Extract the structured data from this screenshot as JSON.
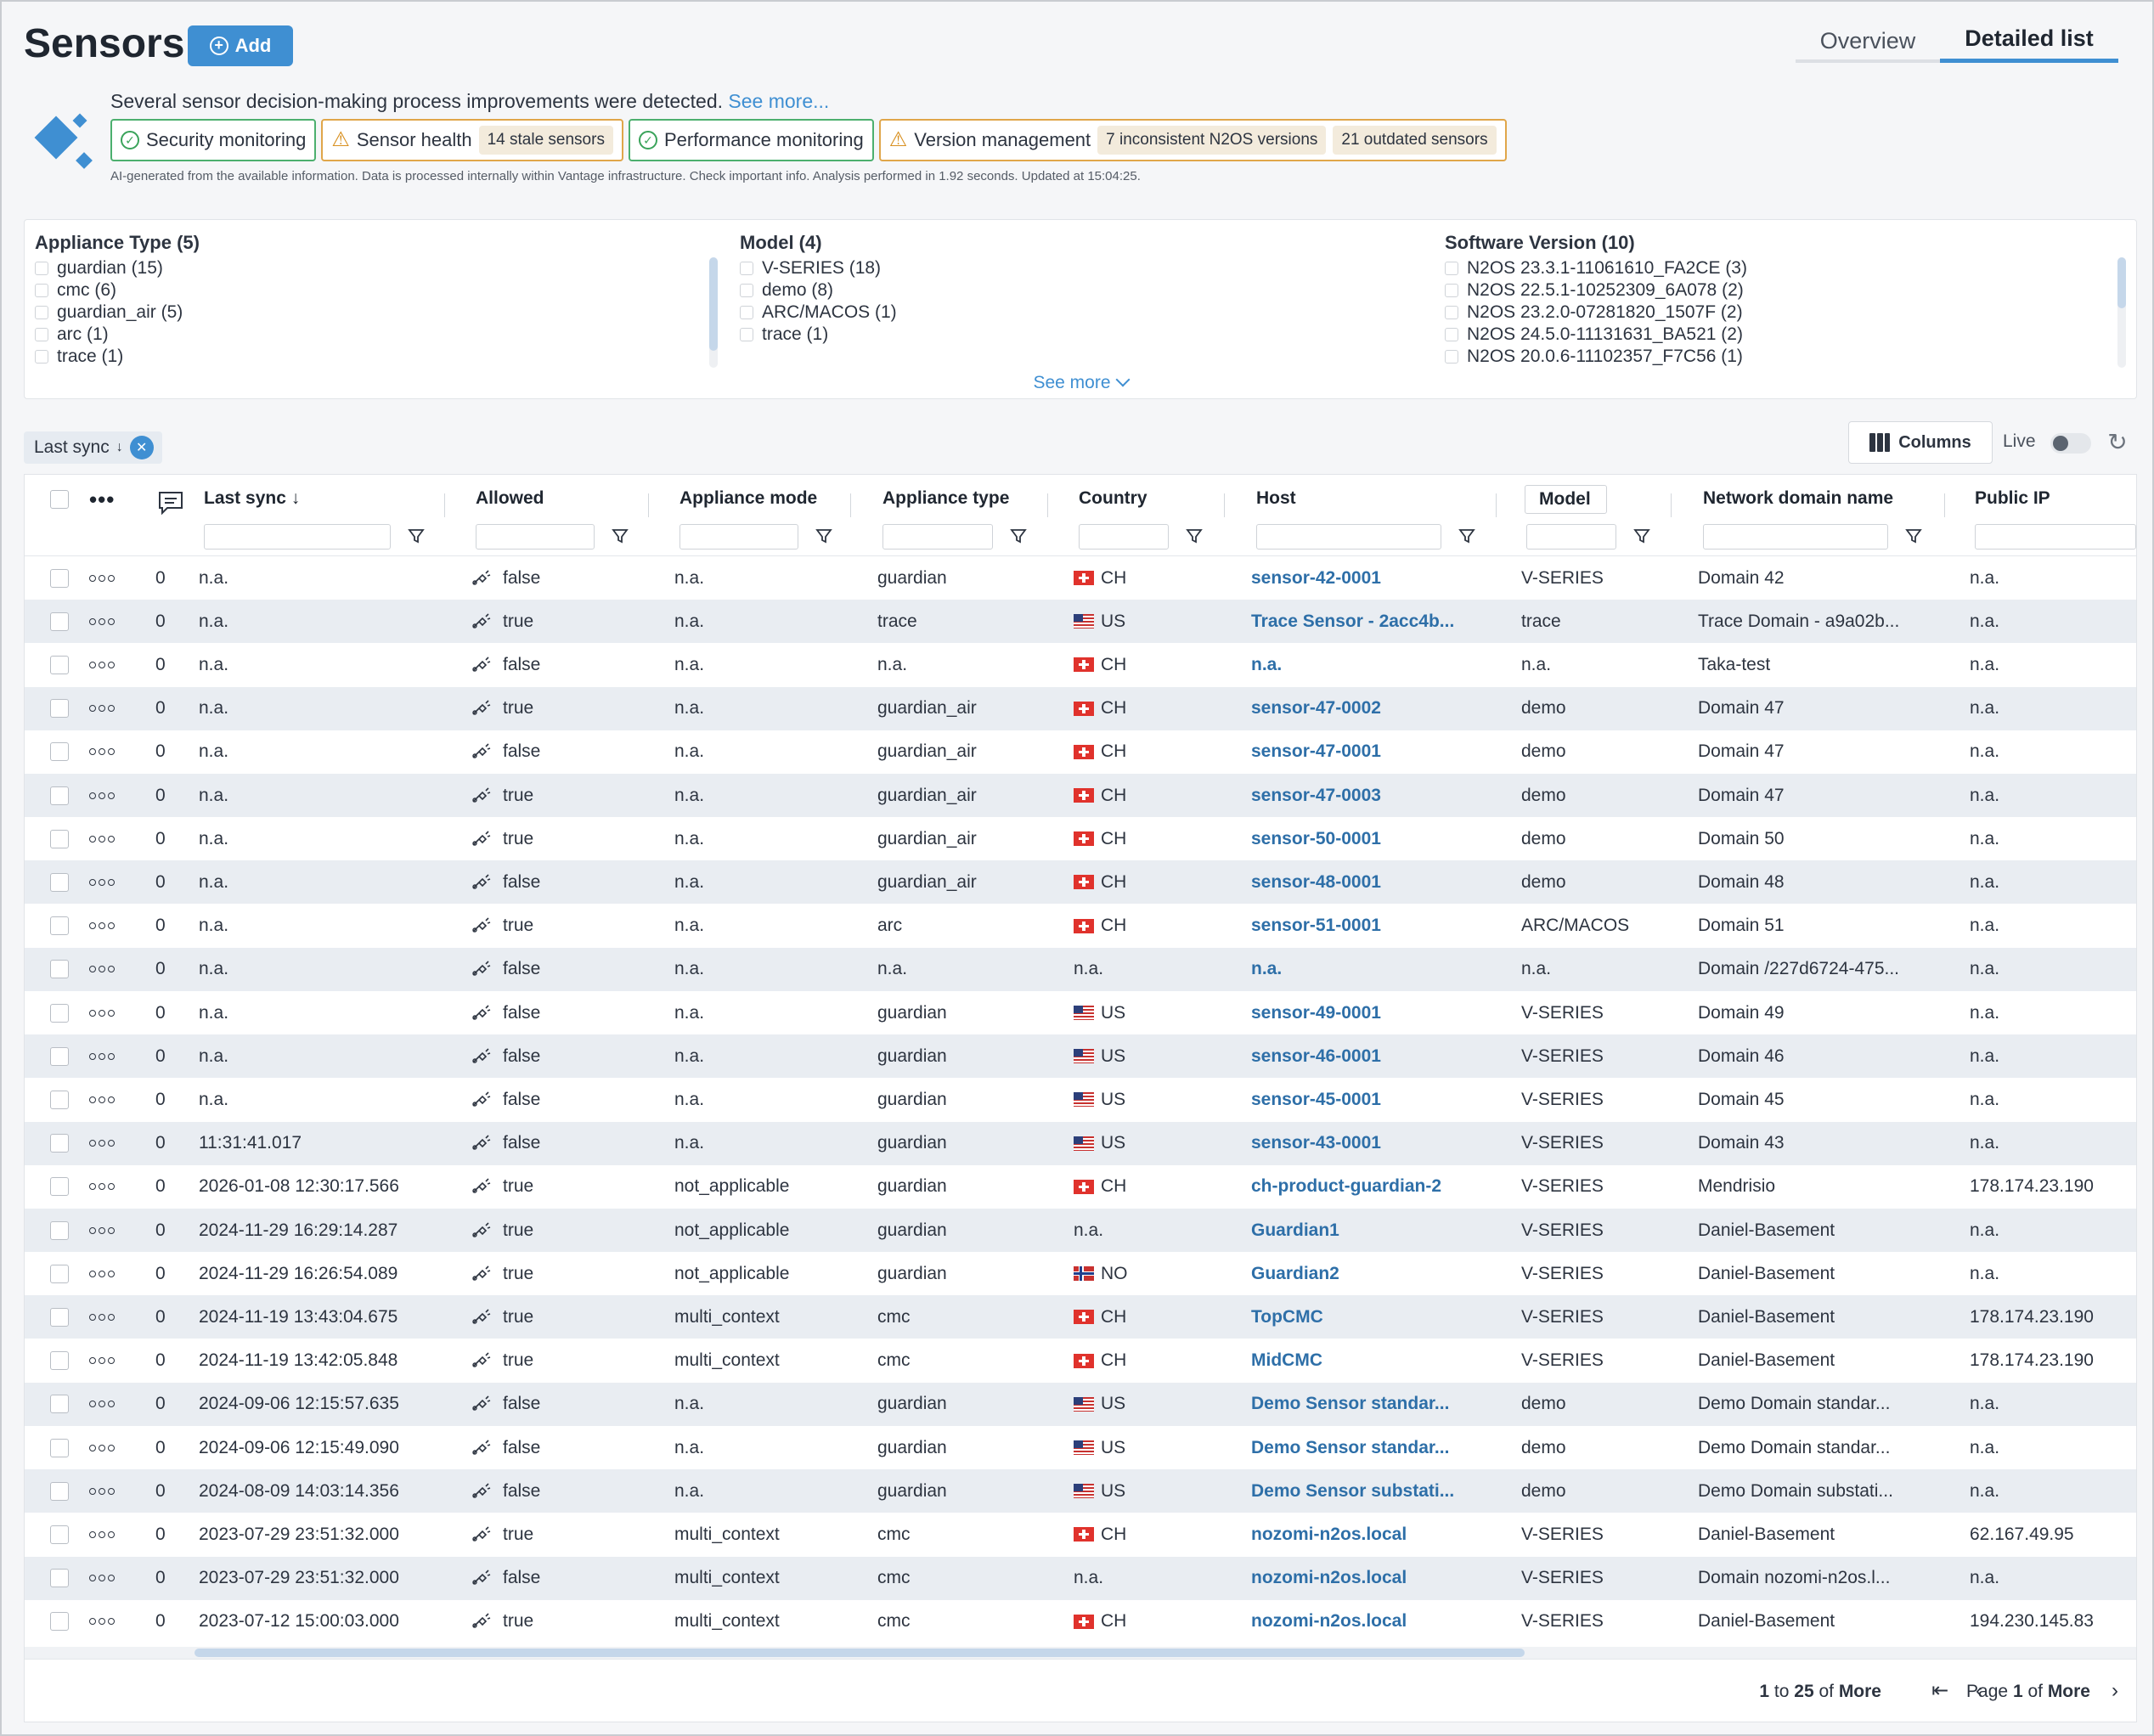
{
  "header": {
    "title": "Sensors",
    "add_label": "Add",
    "tabs": [
      "Overview",
      "Detailed list"
    ],
    "active_tab": "Detailed list"
  },
  "ai_insights": {
    "summary": "Several sensor decision-making process improvements were detected.",
    "see_more": "See more...",
    "chips": [
      {
        "label": "Security monitoring",
        "status": "ok",
        "badges": []
      },
      {
        "label": "Sensor health",
        "status": "warning",
        "badges": [
          "14 stale sensors"
        ]
      },
      {
        "label": "Performance monitoring",
        "status": "ok",
        "badges": []
      },
      {
        "label": "Version management",
        "status": "warning",
        "badges": [
          "7 inconsistent N2OS versions",
          "21 outdated sensors"
        ]
      }
    ],
    "disclaimer": "AI-generated from the available information. Data is processed internally within Vantage infrastructure. Check important info. Analysis performed in 1.92 seconds. Updated at 15:04:25."
  },
  "facets": {
    "groups": [
      {
        "title": "Appliance Type (5)",
        "options": [
          "guardian (15)",
          "cmc (6)",
          "guardian_air (5)",
          "arc (1)",
          "trace (1)"
        ]
      },
      {
        "title": "Model (4)",
        "options": [
          "V-SERIES (18)",
          "demo (8)",
          "ARC/MACOS (1)",
          "trace (1)"
        ]
      },
      {
        "title": "Software Version (10)",
        "options": [
          "N2OS 23.3.1-11061610_FA2CE (3)",
          "N2OS 22.5.1-10252309_6A078 (2)",
          "N2OS 23.2.0-07281820_1507F (2)",
          "N2OS 24.5.0-11131631_BA521 (2)",
          "N2OS 20.0.6-11102357_F7C56 (1)"
        ]
      }
    ],
    "see_more": "See more"
  },
  "toolbar": {
    "sort_chip": "Last sync",
    "columns_label": "Columns",
    "live_label": "Live",
    "live_on": false
  },
  "table": {
    "columns": [
      "Last sync",
      "Allowed",
      "Appliance mode",
      "Appliance type",
      "Country",
      "Host",
      "Model",
      "Network domain name",
      "Public IP"
    ],
    "sort_column": "Last sync",
    "sort_direction": "descending",
    "rows": [
      {
        "count": "0",
        "last_sync": "n.a.",
        "allowed": "false",
        "mode": "n.a.",
        "type": "guardian",
        "flag": "ch",
        "country": "CH",
        "host": "sensor-42-0001",
        "model": "V-SERIES",
        "domain": "Domain 42",
        "ip": "n.a."
      },
      {
        "count": "0",
        "last_sync": "n.a.",
        "allowed": "true",
        "mode": "n.a.",
        "type": "trace",
        "flag": "us",
        "country": "US",
        "host": "Trace Sensor - 2acc4b...",
        "model": "trace",
        "domain": "Trace Domain - a9a02b...",
        "ip": "n.a."
      },
      {
        "count": "0",
        "last_sync": "n.a.",
        "allowed": "false",
        "mode": "n.a.",
        "type": "n.a.",
        "flag": "ch",
        "country": "CH",
        "host": "n.a.",
        "model": "n.a.",
        "domain": "Taka-test",
        "ip": "n.a."
      },
      {
        "count": "0",
        "last_sync": "n.a.",
        "allowed": "true",
        "mode": "n.a.",
        "type": "guardian_air",
        "flag": "ch",
        "country": "CH",
        "host": "sensor-47-0002",
        "model": "demo",
        "domain": "Domain 47",
        "ip": "n.a."
      },
      {
        "count": "0",
        "last_sync": "n.a.",
        "allowed": "false",
        "mode": "n.a.",
        "type": "guardian_air",
        "flag": "ch",
        "country": "CH",
        "host": "sensor-47-0001",
        "model": "demo",
        "domain": "Domain 47",
        "ip": "n.a."
      },
      {
        "count": "0",
        "last_sync": "n.a.",
        "allowed": "true",
        "mode": "n.a.",
        "type": "guardian_air",
        "flag": "ch",
        "country": "CH",
        "host": "sensor-47-0003",
        "model": "demo",
        "domain": "Domain 47",
        "ip": "n.a."
      },
      {
        "count": "0",
        "last_sync": "n.a.",
        "allowed": "true",
        "mode": "n.a.",
        "type": "guardian_air",
        "flag": "ch",
        "country": "CH",
        "host": "sensor-50-0001",
        "model": "demo",
        "domain": "Domain 50",
        "ip": "n.a."
      },
      {
        "count": "0",
        "last_sync": "n.a.",
        "allowed": "false",
        "mode": "n.a.",
        "type": "guardian_air",
        "flag": "ch",
        "country": "CH",
        "host": "sensor-48-0001",
        "model": "demo",
        "domain": "Domain 48",
        "ip": "n.a."
      },
      {
        "count": "0",
        "last_sync": "n.a.",
        "allowed": "true",
        "mode": "n.a.",
        "type": "arc",
        "flag": "ch",
        "country": "CH",
        "host": "sensor-51-0001",
        "model": "ARC/MACOS",
        "domain": "Domain 51",
        "ip": "n.a."
      },
      {
        "count": "0",
        "last_sync": "n.a.",
        "allowed": "false",
        "mode": "n.a.",
        "type": "n.a.",
        "flag": "",
        "country": "n.a.",
        "host": "n.a.",
        "model": "n.a.",
        "domain": "Domain /227d6724-475...",
        "ip": "n.a."
      },
      {
        "count": "0",
        "last_sync": "n.a.",
        "allowed": "false",
        "mode": "n.a.",
        "type": "guardian",
        "flag": "us",
        "country": "US",
        "host": "sensor-49-0001",
        "model": "V-SERIES",
        "domain": "Domain 49",
        "ip": "n.a."
      },
      {
        "count": "0",
        "last_sync": "n.a.",
        "allowed": "false",
        "mode": "n.a.",
        "type": "guardian",
        "flag": "us",
        "country": "US",
        "host": "sensor-46-0001",
        "model": "V-SERIES",
        "domain": "Domain 46",
        "ip": "n.a."
      },
      {
        "count": "0",
        "last_sync": "n.a.",
        "allowed": "false",
        "mode": "n.a.",
        "type": "guardian",
        "flag": "us",
        "country": "US",
        "host": "sensor-45-0001",
        "model": "V-SERIES",
        "domain": "Domain 45",
        "ip": "n.a."
      },
      {
        "count": "0",
        "last_sync": "11:31:41.017",
        "allowed": "false",
        "mode": "n.a.",
        "type": "guardian",
        "flag": "us",
        "country": "US",
        "host": "sensor-43-0001",
        "model": "V-SERIES",
        "domain": "Domain 43",
        "ip": "n.a."
      },
      {
        "count": "0",
        "last_sync": "2026-01-08 12:30:17.566",
        "allowed": "true",
        "mode": "not_applicable",
        "type": "guardian",
        "flag": "ch",
        "country": "CH",
        "host": "ch-product-guardian-2",
        "model": "V-SERIES",
        "domain": "Mendrisio",
        "ip": "178.174.23.190"
      },
      {
        "count": "0",
        "last_sync": "2024-11-29 16:29:14.287",
        "allowed": "true",
        "mode": "not_applicable",
        "type": "guardian",
        "flag": "",
        "country": "n.a.",
        "host": "Guardian1",
        "model": "V-SERIES",
        "domain": "Daniel-Basement",
        "ip": "n.a."
      },
      {
        "count": "0",
        "last_sync": "2024-11-29 16:26:54.089",
        "allowed": "true",
        "mode": "not_applicable",
        "type": "guardian",
        "flag": "no",
        "country": "NO",
        "host": "Guardian2",
        "model": "V-SERIES",
        "domain": "Daniel-Basement",
        "ip": "n.a."
      },
      {
        "count": "0",
        "last_sync": "2024-11-19 13:43:04.675",
        "allowed": "true",
        "mode": "multi_context",
        "type": "cmc",
        "flag": "ch",
        "country": "CH",
        "host": "TopCMC",
        "model": "V-SERIES",
        "domain": "Daniel-Basement",
        "ip": "178.174.23.190"
      },
      {
        "count": "0",
        "last_sync": "2024-11-19 13:42:05.848",
        "allowed": "true",
        "mode": "multi_context",
        "type": "cmc",
        "flag": "ch",
        "country": "CH",
        "host": "MidCMC",
        "model": "V-SERIES",
        "domain": "Daniel-Basement",
        "ip": "178.174.23.190"
      },
      {
        "count": "0",
        "last_sync": "2024-09-06 12:15:57.635",
        "allowed": "false",
        "mode": "n.a.",
        "type": "guardian",
        "flag": "us",
        "country": "US",
        "host": "Demo Sensor standar...",
        "model": "demo",
        "domain": "Demo Domain standar...",
        "ip": "n.a."
      },
      {
        "count": "0",
        "last_sync": "2024-09-06 12:15:49.090",
        "allowed": "false",
        "mode": "n.a.",
        "type": "guardian",
        "flag": "us",
        "country": "US",
        "host": "Demo Sensor standar...",
        "model": "demo",
        "domain": "Demo Domain standar...",
        "ip": "n.a."
      },
      {
        "count": "0",
        "last_sync": "2024-08-09 14:03:14.356",
        "allowed": "false",
        "mode": "n.a.",
        "type": "guardian",
        "flag": "us",
        "country": "US",
        "host": "Demo Sensor substati...",
        "model": "demo",
        "domain": "Demo Domain substati...",
        "ip": "n.a."
      },
      {
        "count": "0",
        "last_sync": "2023-07-29 23:51:32.000",
        "allowed": "true",
        "mode": "multi_context",
        "type": "cmc",
        "flag": "ch",
        "country": "CH",
        "host": "nozomi-n2os.local",
        "model": "V-SERIES",
        "domain": "Daniel-Basement",
        "ip": "62.167.49.95"
      },
      {
        "count": "0",
        "last_sync": "2023-07-29 23:51:32.000",
        "allowed": "false",
        "mode": "multi_context",
        "type": "cmc",
        "flag": "",
        "country": "n.a.",
        "host": "nozomi-n2os.local",
        "model": "V-SERIES",
        "domain": "Domain nozomi-n2os.l...",
        "ip": "n.a."
      },
      {
        "count": "0",
        "last_sync": "2023-07-12 15:00:03.000",
        "allowed": "true",
        "mode": "multi_context",
        "type": "cmc",
        "flag": "ch",
        "country": "CH",
        "host": "nozomi-n2os.local",
        "model": "V-SERIES",
        "domain": "Daniel-Basement",
        "ip": "194.230.145.83"
      }
    ]
  },
  "pagination": {
    "from": "1",
    "to": "25",
    "total": "More",
    "page": "1",
    "of": "More"
  }
}
